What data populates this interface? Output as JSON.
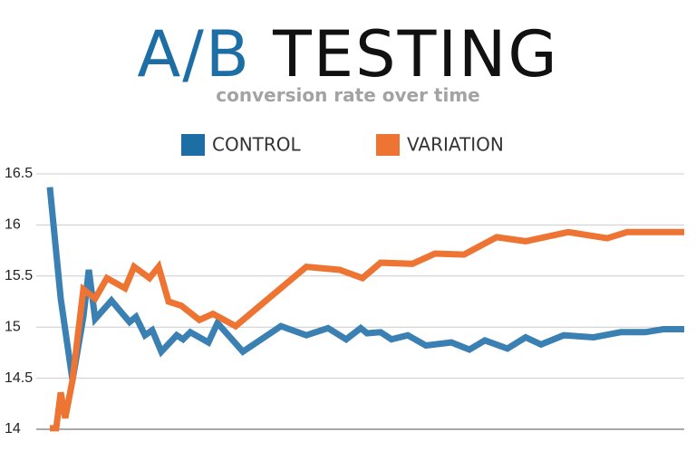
{
  "chart_data": {
    "type": "line",
    "title": "A/B TESTING",
    "subtitle": "conversion rate over time",
    "xlim": [
      0,
      700
    ],
    "ylim": [
      14,
      16.5
    ],
    "yticks": [
      14,
      14.5,
      15,
      15.5,
      16,
      16.5
    ],
    "grid": true,
    "series": [
      {
        "name": "CONTROL",
        "color": "#3a80b3",
        "x": [
          0,
          12,
          25,
          37,
          43,
          50,
          68,
          88,
          95,
          105,
          113,
          123,
          140,
          147,
          155,
          175,
          185,
          213,
          255,
          283,
          307,
          327,
          343,
          350,
          365,
          377,
          395,
          415,
          443,
          463,
          480,
          505,
          525,
          542,
          567,
          600,
          630,
          657,
          677,
          700
        ],
        "values": [
          16.37,
          15.28,
          14.48,
          15.1,
          15.56,
          15.08,
          15.26,
          15.05,
          15.1,
          14.92,
          14.97,
          14.76,
          14.92,
          14.88,
          14.95,
          14.85,
          15.04,
          14.76,
          15.01,
          14.92,
          14.99,
          14.88,
          14.99,
          14.94,
          14.95,
          14.88,
          14.92,
          14.82,
          14.85,
          14.78,
          14.87,
          14.79,
          14.9,
          14.83,
          14.92,
          14.9,
          14.95,
          14.95,
          14.98,
          14.98
        ]
      },
      {
        "name": "VARIATION",
        "color": "#ee7433",
        "x": [
          0,
          7,
          12,
          17,
          25,
          37,
          50,
          63,
          83,
          93,
          110,
          120,
          131,
          145,
          165,
          180,
          205,
          283,
          320,
          345,
          365,
          400,
          425,
          457,
          493,
          525,
          572,
          615,
          637,
          700
        ],
        "values": [
          14.01,
          14.01,
          14.36,
          14.11,
          14.48,
          15.37,
          15.28,
          15.48,
          15.38,
          15.59,
          15.48,
          15.59,
          15.25,
          15.21,
          15.07,
          15.13,
          15.01,
          15.59,
          15.56,
          15.48,
          15.63,
          15.62,
          15.72,
          15.71,
          15.88,
          15.84,
          15.93,
          15.87,
          15.93,
          15.93
        ]
      }
    ]
  }
}
